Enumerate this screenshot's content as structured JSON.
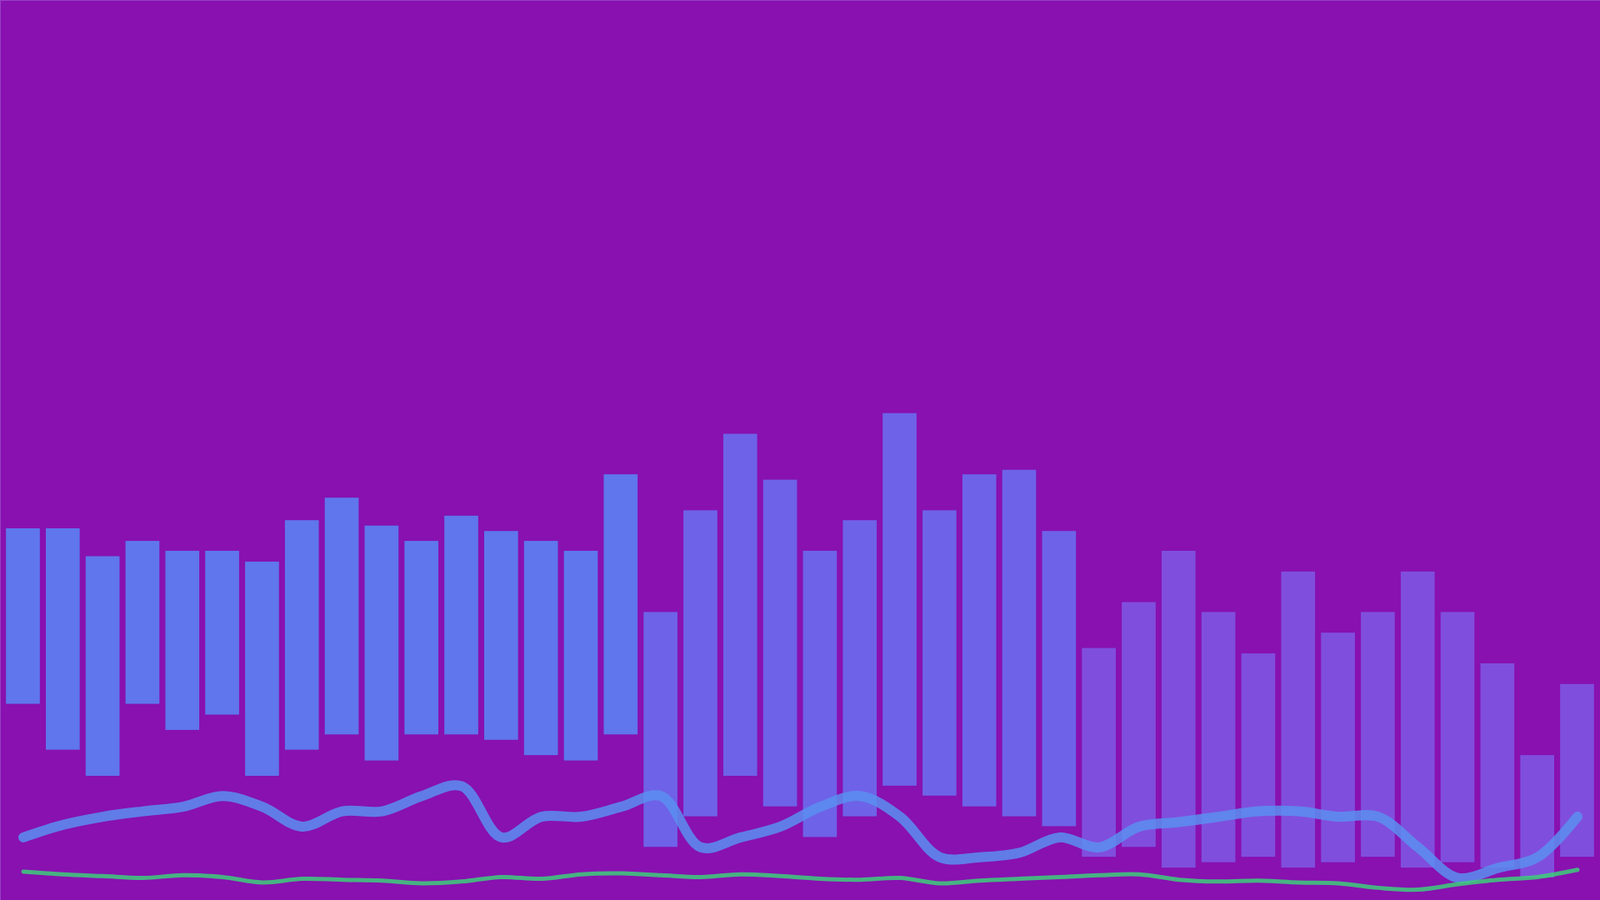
{
  "chart_data": {
    "type": "bar",
    "tick_labels": false,
    "ylim": [
      0,
      100
    ],
    "x": [
      1,
      2,
      3,
      4,
      5,
      6,
      7,
      8,
      9,
      10,
      11,
      12,
      13,
      14,
      15,
      16,
      17,
      18,
      19,
      20,
      21,
      22,
      23,
      24,
      25,
      26,
      27,
      28,
      29,
      30,
      31,
      32,
      33,
      34,
      35,
      36,
      37,
      38,
      39,
      40
    ],
    "low": [
      21.8,
      16.7,
      13.8,
      21.8,
      18.9,
      20.6,
      13.8,
      16.7,
      18.4,
      15.5,
      18.4,
      18.4,
      17.8,
      16.1,
      15.5,
      18.4,
      5.9,
      9.3,
      13.8,
      10.4,
      7.0,
      9.3,
      12.7,
      11.6,
      10.4,
      9.3,
      8.2,
      4.8,
      5.9,
      3.6,
      4.2,
      4.8,
      3.6,
      4.2,
      4.8,
      3.6,
      4.2,
      3.6,
      2.5,
      4.8
    ],
    "high": [
      41.3,
      41.3,
      38.2,
      39.9,
      38.8,
      38.8,
      37.6,
      42.2,
      44.7,
      41.6,
      39.9,
      42.7,
      41.0,
      39.9,
      38.8,
      47.3,
      32.0,
      43.3,
      51.8,
      46.7,
      38.8,
      42.2,
      54.1,
      43.3,
      47.3,
      47.8,
      41.0,
      28.0,
      33.1,
      38.8,
      32.0,
      27.4,
      36.5,
      29.7,
      32.0,
      36.5,
      32.0,
      26.3,
      16.1,
      24.0
    ],
    "colors": [
      "#5b82f3",
      "#5b82f3",
      "#5b82f3",
      "#5b82f3",
      "#5b82f3",
      "#5b82f3",
      "#5b82f3",
      "#5b82f3",
      "#5b82f3",
      "#5b82f3",
      "#5b82f3",
      "#5b82f3",
      "#5b82f3",
      "#5b82f3",
      "#5b82f3",
      "#5b82f3",
      "#6c6bee",
      "#6c6bee",
      "#6c6bee",
      "#6c6bee",
      "#6c6bee",
      "#6c6bee",
      "#6c6bee",
      "#6c6bee",
      "#6c6bee",
      "#6c6bee",
      "#6c6bee",
      "#8055e2",
      "#8055e2",
      "#8055e2",
      "#8055e2",
      "#8055e2",
      "#8055e2",
      "#8055e2",
      "#8055e2",
      "#8055e2",
      "#8055e2",
      "#8055e2",
      "#8055e2",
      "#8055e2"
    ],
    "series": [
      {
        "type": "line",
        "color": "#5a8ff0",
        "values": [
          7.0,
          8.4,
          9.3,
          9.9,
          10.4,
          11.6,
          10.4,
          8.2,
          9.9,
          9.9,
          11.6,
          12.7,
          7.0,
          9.3,
          9.3,
          10.4,
          11.6,
          5.9,
          7.0,
          8.2,
          10.4,
          11.6,
          9.3,
          4.8,
          4.8,
          5.3,
          7.0,
          5.9,
          8.2,
          8.7,
          9.3,
          9.9,
          9.9,
          9.3,
          9.3,
          5.9,
          2.5,
          3.6,
          4.8,
          9.3
        ]
      },
      {
        "type": "line",
        "color": "#3cd07a",
        "values": [
          3.2,
          2.9,
          2.7,
          2.5,
          2.8,
          2.6,
          2.0,
          2.4,
          2.3,
          2.2,
          1.9,
          2.1,
          2.6,
          2.4,
          2.9,
          3.0,
          2.8,
          2.6,
          2.9,
          2.7,
          2.4,
          2.3,
          2.5,
          1.9,
          2.2,
          2.4,
          2.6,
          2.8,
          2.9,
          2.3,
          2.1,
          2.2,
          2.0,
          1.9,
          1.4,
          1.2,
          1.8,
          2.3,
          2.6,
          3.4
        ]
      }
    ]
  }
}
